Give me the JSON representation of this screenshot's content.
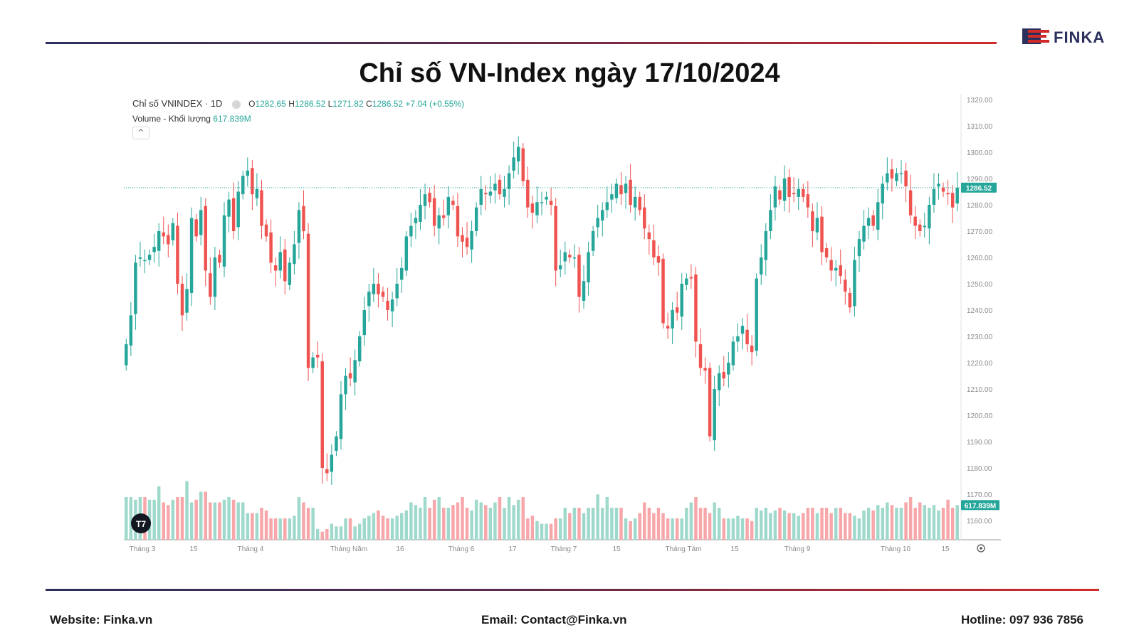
{
  "page": {
    "title": "Chỉ số VN-Index ngày 17/10/2024",
    "logo_text": "FINKA",
    "footer": {
      "website": "Website: Finka.vn",
      "email": "Email: Contact@Finka.vn",
      "hotline": "Hotline: 097 936 7856"
    }
  },
  "colors": {
    "up": "#26a69a",
    "down": "#ef5350",
    "up_volume": "#9fd9cc",
    "down_volume": "#f7a6a9",
    "brand_navy": "#2b2f5c",
    "brand_red": "#d12a2a"
  },
  "legend": {
    "symbol": "Chỉ số VNINDEX · 1D",
    "o_label": "O",
    "o_value": "1282.65",
    "h_label": "H",
    "h_value": "1286.52",
    "l_label": "L",
    "l_value": "1271.82",
    "c_label": "C",
    "c_value": "1286.52",
    "change": "+7.04 (+0.55%)",
    "volume_label": "Volume - Khối lượng",
    "volume_value": "617.839M",
    "collapse_icon": "chevron-up-icon"
  },
  "chart_data": {
    "type": "candlestick",
    "title": "Chỉ số VNINDEX · 1D",
    "y_axis": {
      "ticks": [
        1320,
        1310,
        1300,
        1290,
        1280,
        1270,
        1260,
        1250,
        1240,
        1230,
        1220,
        1210,
        1200,
        1190,
        1180,
        1170,
        1160
      ],
      "range": [
        1160,
        1320
      ],
      "position": "right"
    },
    "x_axis": {
      "tick_labels": [
        "Tháng 3",
        "15",
        "Tháng 4",
        "Tháng Năm",
        "16",
        "Tháng 6",
        "17",
        "Tháng 7",
        "15",
        "Tháng Tám",
        "15",
        "Tháng 9",
        "Tháng 10",
        "15"
      ]
    },
    "last_price_label": "1286.52",
    "last_volume_label": "617.839M",
    "reference_line": 1286.52,
    "closes": [
      1227,
      1238,
      1258,
      1260,
      1259,
      1261,
      1264,
      1270,
      1268,
      1265,
      1273,
      1250,
      1238,
      1248,
      1275,
      1268,
      1278,
      1255,
      1245,
      1260,
      1258,
      1276,
      1282,
      1270,
      1285,
      1291,
      1293,
      1284,
      1286,
      1272,
      1268,
      1258,
      1255,
      1262,
      1251,
      1258,
      1265,
      1278,
      1270,
      1218,
      1222,
      1222,
      1180,
      1178,
      1185,
      1192,
      1208,
      1215,
      1214,
      1221,
      1230,
      1240,
      1247,
      1250,
      1246,
      1245,
      1240,
      1244,
      1250,
      1256,
      1268,
      1272,
      1275,
      1280,
      1284,
      1281,
      1272,
      1276,
      1275,
      1283,
      1280,
      1268,
      1266,
      1264,
      1270,
      1279,
      1286,
      1284,
      1285,
      1288,
      1284,
      1286,
      1292,
      1298,
      1302,
      1289,
      1279,
      1277,
      1281,
      1281,
      1283,
      1280,
      1255,
      1257,
      1262,
      1260,
      1260,
      1245,
      1251,
      1262,
      1270,
      1275,
      1278,
      1281,
      1284,
      1288,
      1284,
      1288,
      1280,
      1283,
      1278,
      1271,
      1267,
      1260,
      1258,
      1235,
      1233,
      1240,
      1239,
      1250,
      1252,
      1252,
      1228,
      1218,
      1217,
      1192,
      1210,
      1216,
      1214,
      1220,
      1228,
      1230,
      1234,
      1227,
      1224,
      1252,
      1260,
      1270,
      1278,
      1287,
      1282,
      1290,
      1283,
      1284,
      1286,
      1283,
      1279,
      1270,
      1275,
      1262,
      1260,
      1255,
      1256,
      1253,
      1247,
      1241,
      1259,
      1267,
      1272,
      1275,
      1272,
      1281,
      1288,
      1292,
      1290,
      1292,
      1292,
      1287,
      1276,
      1272,
      1270,
      1272,
      1280,
      1286,
      1288,
      1285,
      1284,
      1279,
      1286.52
    ],
    "volumes": [
      620,
      620,
      615,
      620,
      620,
      615,
      615,
      640,
      610,
      605,
      615,
      620,
      620,
      650,
      610,
      615,
      630,
      630,
      610,
      610,
      610,
      615,
      620,
      615,
      610,
      610,
      590,
      590,
      590,
      600,
      595,
      580,
      580,
      580,
      580,
      580,
      585,
      620,
      610,
      600,
      600,
      560,
      555,
      560,
      570,
      565,
      565,
      580,
      580,
      565,
      570,
      580,
      585,
      590,
      595,
      585,
      580,
      580,
      585,
      590,
      595,
      610,
      605,
      600,
      620,
      600,
      615,
      620,
      600,
      600,
      605,
      610,
      620,
      600,
      595,
      615,
      610,
      605,
      600,
      610,
      620,
      600,
      620,
      605,
      615,
      620,
      580,
      585,
      575,
      570,
      570,
      570,
      580,
      580,
      600,
      590,
      600,
      600,
      590,
      600,
      600,
      625,
      600,
      620,
      600,
      600,
      600,
      580,
      575,
      580,
      590,
      610,
      600,
      590,
      600,
      590,
      580,
      580,
      580,
      580,
      600,
      610,
      620,
      600,
      600,
      590,
      610,
      600,
      580,
      580,
      580,
      585,
      580,
      580,
      575,
      600,
      595,
      600,
      590,
      595,
      600,
      595,
      590,
      590,
      585,
      590,
      600,
      600,
      590,
      600,
      600,
      590,
      600,
      600,
      590,
      590,
      585,
      580,
      595,
      600,
      595,
      605,
      600,
      610,
      605,
      600,
      600,
      610,
      620,
      600,
      610,
      605,
      600,
      605,
      595,
      600,
      615,
      600,
      605,
      600,
      600,
      600,
      617.839
    ]
  }
}
